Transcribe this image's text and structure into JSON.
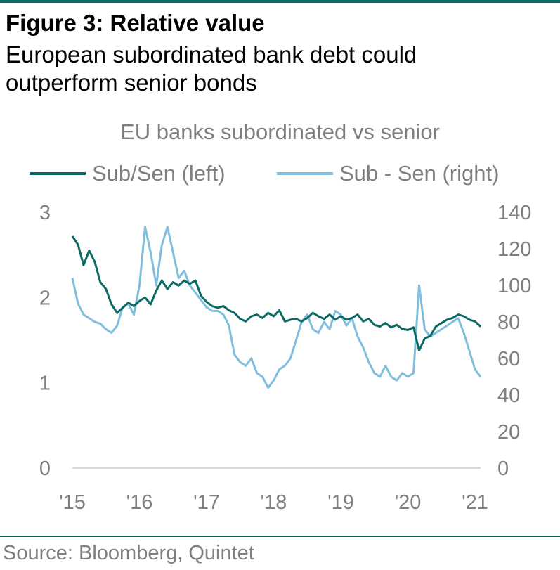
{
  "figure": {
    "title": "Figure 3: Relative value",
    "subtitle": "European subordinated bank debt could outperform senior bonds",
    "source": "Source: Bloomberg, Quintet"
  },
  "colors": {
    "brand": "#0b6a63",
    "series_left": "#0b6a63",
    "series_right": "#7fbfdd",
    "text_muted": "#7f7f7f",
    "axis": "#d9d9d9"
  },
  "chart_data": {
    "type": "line",
    "title": "EU banks subordinated vs senior",
    "legend_position": "top",
    "grid": false,
    "x_axis": {
      "type": "date",
      "range": [
        "2015-01",
        "2021-02"
      ],
      "tick_labels": [
        "'15",
        "'16",
        "'17",
        "'18",
        "'19",
        "'20",
        "'21"
      ],
      "tick_dates": [
        "2015-01",
        "2016-01",
        "2017-01",
        "2018-01",
        "2019-01",
        "2020-01",
        "2021-01"
      ]
    },
    "y_left": {
      "range": [
        0,
        3
      ],
      "ticks": [
        0,
        1,
        2,
        3
      ]
    },
    "y_right": {
      "range": [
        0,
        140
      ],
      "ticks": [
        0,
        20,
        40,
        60,
        80,
        100,
        120,
        140
      ]
    },
    "series": [
      {
        "name": "Sub/Sen (left)",
        "axis": "left",
        "points": [
          [
            "2015-01",
            2.72
          ],
          [
            "2015-02",
            2.62
          ],
          [
            "2015-03",
            2.38
          ],
          [
            "2015-04",
            2.55
          ],
          [
            "2015-05",
            2.42
          ],
          [
            "2015-06",
            2.18
          ],
          [
            "2015-07",
            2.1
          ],
          [
            "2015-08",
            1.92
          ],
          [
            "2015-09",
            1.82
          ],
          [
            "2015-10",
            1.88
          ],
          [
            "2015-11",
            1.94
          ],
          [
            "2015-12",
            1.9
          ],
          [
            "2016-01",
            1.96
          ],
          [
            "2016-02",
            2.0
          ],
          [
            "2016-03",
            1.92
          ],
          [
            "2016-04",
            2.08
          ],
          [
            "2016-05",
            2.2
          ],
          [
            "2016-06",
            2.1
          ],
          [
            "2016-07",
            2.18
          ],
          [
            "2016-08",
            2.14
          ],
          [
            "2016-09",
            2.2
          ],
          [
            "2016-10",
            2.16
          ],
          [
            "2016-11",
            2.2
          ],
          [
            "2016-12",
            2.02
          ],
          [
            "2017-01",
            1.95
          ],
          [
            "2017-02",
            1.9
          ],
          [
            "2017-03",
            1.88
          ],
          [
            "2017-04",
            1.9
          ],
          [
            "2017-05",
            1.85
          ],
          [
            "2017-06",
            1.82
          ],
          [
            "2017-07",
            1.75
          ],
          [
            "2017-08",
            1.72
          ],
          [
            "2017-09",
            1.78
          ],
          [
            "2017-10",
            1.8
          ],
          [
            "2017-11",
            1.76
          ],
          [
            "2017-12",
            1.82
          ],
          [
            "2018-01",
            1.78
          ],
          [
            "2018-02",
            1.85
          ],
          [
            "2018-03",
            1.72
          ],
          [
            "2018-04",
            1.74
          ],
          [
            "2018-05",
            1.75
          ],
          [
            "2018-06",
            1.72
          ],
          [
            "2018-07",
            1.76
          ],
          [
            "2018-08",
            1.82
          ],
          [
            "2018-09",
            1.78
          ],
          [
            "2018-10",
            1.75
          ],
          [
            "2018-11",
            1.8
          ],
          [
            "2018-12",
            1.74
          ],
          [
            "2019-01",
            1.78
          ],
          [
            "2019-02",
            1.74
          ],
          [
            "2019-03",
            1.76
          ],
          [
            "2019-04",
            1.8
          ],
          [
            "2019-05",
            1.72
          ],
          [
            "2019-06",
            1.75
          ],
          [
            "2019-07",
            1.68
          ],
          [
            "2019-08",
            1.66
          ],
          [
            "2019-09",
            1.7
          ],
          [
            "2019-10",
            1.65
          ],
          [
            "2019-11",
            1.68
          ],
          [
            "2019-12",
            1.63
          ],
          [
            "2020-01",
            1.62
          ],
          [
            "2020-02",
            1.65
          ],
          [
            "2020-03",
            1.38
          ],
          [
            "2020-04",
            1.52
          ],
          [
            "2020-05",
            1.55
          ],
          [
            "2020-06",
            1.66
          ],
          [
            "2020-07",
            1.7
          ],
          [
            "2020-08",
            1.74
          ],
          [
            "2020-09",
            1.76
          ],
          [
            "2020-10",
            1.8
          ],
          [
            "2020-11",
            1.78
          ],
          [
            "2020-12",
            1.74
          ],
          [
            "2021-01",
            1.72
          ],
          [
            "2021-02",
            1.66
          ]
        ]
      },
      {
        "name": "Sub - Sen (right)",
        "axis": "right",
        "points": [
          [
            "2015-01",
            104
          ],
          [
            "2015-02",
            90
          ],
          [
            "2015-03",
            84
          ],
          [
            "2015-04",
            82
          ],
          [
            "2015-05",
            80
          ],
          [
            "2015-06",
            79
          ],
          [
            "2015-07",
            76
          ],
          [
            "2015-08",
            74
          ],
          [
            "2015-09",
            78
          ],
          [
            "2015-10",
            88
          ],
          [
            "2015-11",
            90
          ],
          [
            "2015-12",
            84
          ],
          [
            "2016-01",
            100
          ],
          [
            "2016-02",
            132
          ],
          [
            "2016-03",
            118
          ],
          [
            "2016-04",
            100
          ],
          [
            "2016-05",
            122
          ],
          [
            "2016-06",
            132
          ],
          [
            "2016-07",
            118
          ],
          [
            "2016-08",
            104
          ],
          [
            "2016-09",
            108
          ],
          [
            "2016-10",
            100
          ],
          [
            "2016-11",
            96
          ],
          [
            "2016-12",
            92
          ],
          [
            "2017-01",
            88
          ],
          [
            "2017-02",
            86
          ],
          [
            "2017-03",
            86
          ],
          [
            "2017-04",
            84
          ],
          [
            "2017-05",
            78
          ],
          [
            "2017-06",
            62
          ],
          [
            "2017-07",
            58
          ],
          [
            "2017-08",
            56
          ],
          [
            "2017-09",
            60
          ],
          [
            "2017-10",
            52
          ],
          [
            "2017-11",
            50
          ],
          [
            "2017-12",
            44
          ],
          [
            "2018-01",
            48
          ],
          [
            "2018-02",
            54
          ],
          [
            "2018-03",
            56
          ],
          [
            "2018-04",
            60
          ],
          [
            "2018-05",
            70
          ],
          [
            "2018-06",
            80
          ],
          [
            "2018-07",
            84
          ],
          [
            "2018-08",
            76
          ],
          [
            "2018-09",
            74
          ],
          [
            "2018-10",
            80
          ],
          [
            "2018-11",
            76
          ],
          [
            "2018-12",
            86
          ],
          [
            "2019-01",
            84
          ],
          [
            "2019-02",
            78
          ],
          [
            "2019-03",
            82
          ],
          [
            "2019-04",
            72
          ],
          [
            "2019-05",
            66
          ],
          [
            "2019-06",
            58
          ],
          [
            "2019-07",
            52
          ],
          [
            "2019-08",
            50
          ],
          [
            "2019-09",
            56
          ],
          [
            "2019-10",
            50
          ],
          [
            "2019-11",
            48
          ],
          [
            "2019-12",
            52
          ],
          [
            "2020-01",
            50
          ],
          [
            "2020-02",
            52
          ],
          [
            "2020-03",
            100
          ],
          [
            "2020-04",
            76
          ],
          [
            "2020-05",
            72
          ],
          [
            "2020-06",
            74
          ],
          [
            "2020-07",
            76
          ],
          [
            "2020-08",
            78
          ],
          [
            "2020-09",
            80
          ],
          [
            "2020-10",
            82
          ],
          [
            "2020-11",
            74
          ],
          [
            "2020-12",
            64
          ],
          [
            "2021-01",
            54
          ],
          [
            "2021-02",
            50
          ]
        ]
      }
    ]
  }
}
